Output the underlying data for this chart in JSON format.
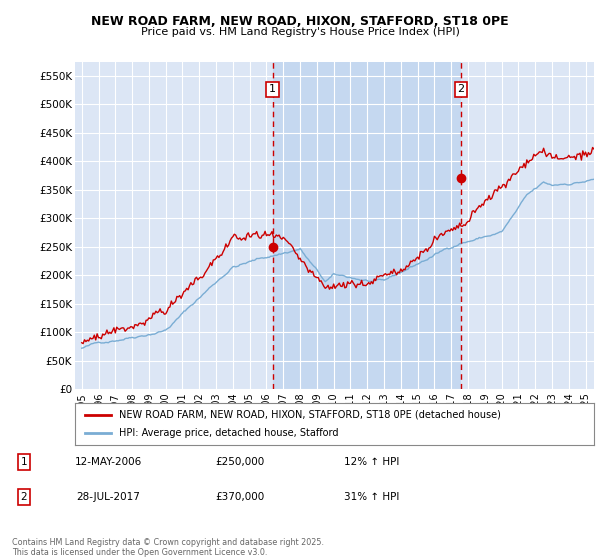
{
  "title_line1": "NEW ROAD FARM, NEW ROAD, HIXON, STAFFORD, ST18 0PE",
  "title_line2": "Price paid vs. HM Land Registry's House Price Index (HPI)",
  "ylim": [
    0,
    575000
  ],
  "yticks": [
    0,
    50000,
    100000,
    150000,
    200000,
    250000,
    300000,
    350000,
    400000,
    450000,
    500000,
    550000
  ],
  "ytick_labels": [
    "£0",
    "£50K",
    "£100K",
    "£150K",
    "£200K",
    "£250K",
    "£300K",
    "£350K",
    "£400K",
    "£450K",
    "£500K",
    "£550K"
  ],
  "xlim_start": 1994.6,
  "xlim_end": 2025.5,
  "xticks": [
    1995,
    1996,
    1997,
    1998,
    1999,
    2000,
    2001,
    2002,
    2003,
    2004,
    2005,
    2006,
    2007,
    2008,
    2009,
    2010,
    2011,
    2012,
    2013,
    2014,
    2015,
    2016,
    2017,
    2018,
    2019,
    2020,
    2021,
    2022,
    2023,
    2024,
    2025
  ],
  "plot_bg_color": "#dce6f5",
  "fig_bg_color": "#ffffff",
  "grid_color": "#ffffff",
  "red_line_color": "#cc0000",
  "blue_line_color": "#7aadd4",
  "purchase1_x": 2006.37,
  "purchase1_y": 250000,
  "purchase2_x": 2017.58,
  "purchase2_y": 370000,
  "shade_color": "#c5d8f0",
  "vline_color": "#cc0000",
  "legend_label_red": "NEW ROAD FARM, NEW ROAD, HIXON, STAFFORD, ST18 0PE (detached house)",
  "legend_label_blue": "HPI: Average price, detached house, Stafford",
  "table_entries": [
    {
      "num": "1",
      "date": "12-MAY-2006",
      "price": "£250,000",
      "hpi": "12% ↑ HPI"
    },
    {
      "num": "2",
      "date": "28-JUL-2017",
      "price": "£370,000",
      "hpi": "31% ↑ HPI"
    }
  ],
  "footnote": "Contains HM Land Registry data © Crown copyright and database right 2025.\nThis data is licensed under the Open Government Licence v3.0."
}
